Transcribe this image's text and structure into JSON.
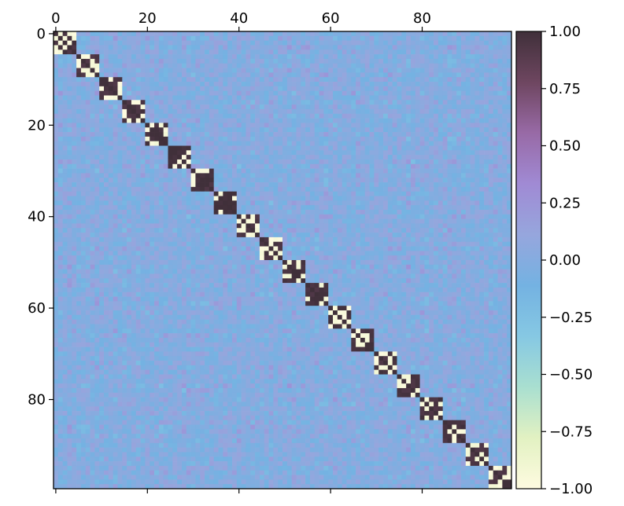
{
  "chart_data": {
    "type": "heatmap",
    "title": "",
    "xlabel": "",
    "ylabel": "",
    "n": 100,
    "x_axis_position": "top",
    "xticks": [
      0,
      20,
      40,
      60,
      80
    ],
    "yticks": [
      0,
      20,
      40,
      60,
      80
    ],
    "xlim": [
      0,
      100
    ],
    "ylim": [
      100,
      0
    ],
    "grid": false,
    "value_range": [
      -1.0,
      1.0
    ],
    "block_size": 5,
    "diagonal_block_starts": [
      0,
      5,
      10,
      15,
      20,
      25,
      30,
      35,
      40,
      45,
      50,
      55,
      60,
      65,
      70,
      75,
      80,
      85,
      90,
      95
    ],
    "off_block_typical_range": [
      -0.3,
      0.3
    ],
    "colormap": [
      "#fefbe0",
      "#e2f1c2",
      "#a9dfd0",
      "#86c8e3",
      "#74b2e2",
      "#96a6dd",
      "#a08ad4",
      "#986aa6",
      "#6e4660",
      "#40303a"
    ],
    "colorbar": {
      "position": "right",
      "ticks": [
        1.0,
        0.75,
        0.5,
        0.25,
        0.0,
        -0.25,
        -0.5,
        -0.75,
        -1.0
      ],
      "tick_labels": [
        "1.00",
        "0.75",
        "0.50",
        "0.25",
        "0.00",
        "−0.25",
        "−0.50",
        "−0.75",
        "−1.00"
      ]
    },
    "x_tick_labels": [
      "0",
      "20",
      "40",
      "60",
      "80"
    ],
    "y_tick_labels": [
      "0",
      "20",
      "40",
      "60",
      "80"
    ]
  }
}
